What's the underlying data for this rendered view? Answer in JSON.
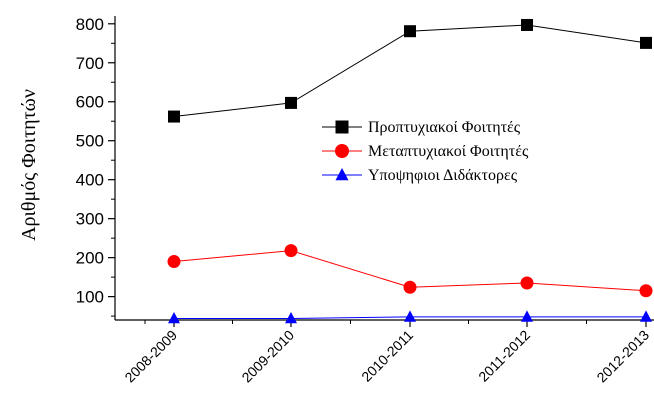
{
  "chart_data": {
    "type": "line",
    "ylabel": "Αριθμός Φοιτητών",
    "categories": [
      "2008-2009",
      "2009-2010",
      "2010-2011",
      "2011-2012",
      "2012-2013"
    ],
    "ylim": [
      40,
      820
    ],
    "yticks": [
      100,
      200,
      300,
      400,
      500,
      600,
      700,
      800
    ],
    "legend_position": "center-right",
    "series": [
      {
        "name": "Προπτυχιακοί Φοιτητές",
        "values": [
          562,
          597,
          781,
          797,
          751
        ],
        "color": "#000000",
        "marker": "square"
      },
      {
        "name": "Μεταπτυχιακοί Φοιτητές",
        "values": [
          190,
          218,
          124,
          135,
          115
        ],
        "color": "#ff0000",
        "marker": "circle"
      },
      {
        "name": "Υποψηφιοι Διδάκτορες",
        "values": [
          44,
          44,
          48,
          48,
          48
        ],
        "color": "#0000ff",
        "marker": "triangle"
      }
    ]
  }
}
